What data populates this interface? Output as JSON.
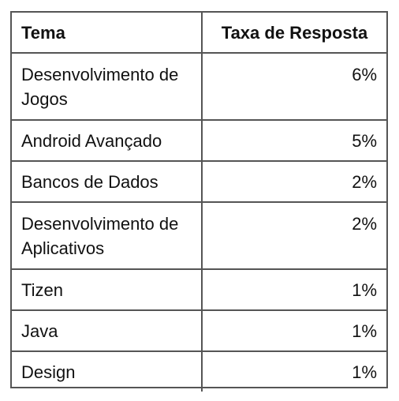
{
  "chart_data": {
    "type": "table",
    "columns": [
      "Tema",
      "Taxa de Resposta"
    ],
    "rows": [
      {
        "topic": "Desenvolvimento de Jogos",
        "rate": "6%"
      },
      {
        "topic": "Android Avançado",
        "rate": "5%"
      },
      {
        "topic": "Bancos de Dados",
        "rate": "2%"
      },
      {
        "topic": "Desenvolvimento de Aplicativos",
        "rate": "2%"
      },
      {
        "topic": "Tizen",
        "rate": "1%"
      },
      {
        "topic": "Java",
        "rate": "1%"
      },
      {
        "topic": "Design",
        "rate": "1%"
      }
    ]
  }
}
